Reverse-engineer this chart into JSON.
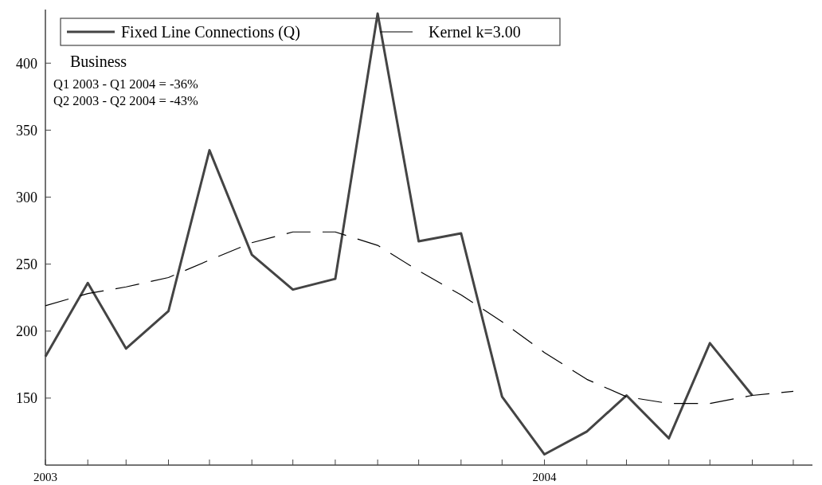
{
  "chart_data": {
    "type": "line",
    "x": [
      "2003-01",
      "2003-02",
      "2003-03",
      "2003-04",
      "2003-05",
      "2003-06",
      "2003-07",
      "2003-08",
      "2003-09",
      "2003-10",
      "2003-11",
      "2003-12",
      "2004-01",
      "2004-02",
      "2004-03",
      "2004-04",
      "2004-05",
      "2004-06"
    ],
    "series": [
      {
        "name": "Fixed Line Connections (Q)",
        "color": "#444444",
        "line_style": "solid",
        "values": [
          181,
          236,
          187,
          215,
          335,
          257,
          231,
          239,
          437,
          267,
          273,
          151,
          108,
          125,
          152,
          120,
          191,
          152
        ]
      },
      {
        "name": "Kernel k=3.00",
        "color": "#000000",
        "line_style": "dashed",
        "x": [
          "2003-01",
          "2003-02",
          "2003-03",
          "2003-04",
          "2003-05",
          "2003-06",
          "2003-07",
          "2003-08",
          "2003-09",
          "2003-10",
          "2003-11",
          "2003-12",
          "2004-01",
          "2004-02",
          "2004-03",
          "2004-04",
          "2004-05",
          "2004-06",
          "2004-07"
        ],
        "values": [
          219,
          228,
          233,
          240,
          253,
          266,
          274,
          274,
          264,
          245,
          227,
          207,
          184,
          164,
          151,
          146,
          146,
          152,
          155
        ]
      }
    ],
    "xlim": [
      "2003-01",
      "2004-07-15"
    ],
    "xticks": [
      {
        "value": "2003-01",
        "label": "2003"
      },
      {
        "value": "2003-02",
        "label": null
      },
      {
        "value": "2003-03",
        "label": null
      },
      {
        "value": "2003-04",
        "label": null
      },
      {
        "value": "2003-05",
        "label": null
      },
      {
        "value": "2003-06",
        "label": null
      },
      {
        "value": "2003-07",
        "label": null
      },
      {
        "value": "2003-08",
        "label": null
      },
      {
        "value": "2003-09",
        "label": null
      },
      {
        "value": "2003-10",
        "label": null
      },
      {
        "value": "2003-11",
        "label": null
      },
      {
        "value": "2003-12",
        "label": null
      },
      {
        "value": "2004-01",
        "label": "2004"
      },
      {
        "value": "2004-02",
        "label": null
      },
      {
        "value": "2004-03",
        "label": null
      },
      {
        "value": "2004-04",
        "label": null
      },
      {
        "value": "2004-05",
        "label": null
      },
      {
        "value": "2004-06",
        "label": null
      },
      {
        "value": "2004-07",
        "label": null
      }
    ],
    "ylim": [
      100,
      440
    ],
    "yticks": [
      150,
      200,
      250,
      300,
      350,
      400
    ],
    "grid": false,
    "legend": "top left",
    "marker": "none",
    "annotations": [
      "Business",
      "Q1 2003 - Q1 2004 = -36%",
      "Q2 2003 - Q2 2004 = -43%"
    ]
  }
}
